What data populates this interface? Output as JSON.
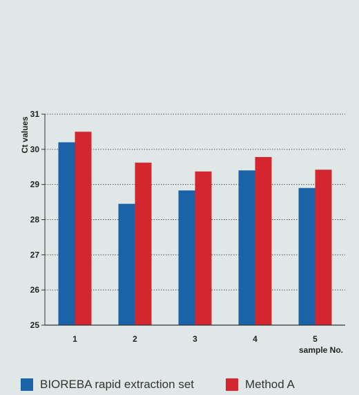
{
  "chart_data": {
    "type": "bar",
    "categories": [
      "1",
      "2",
      "3",
      "4",
      "5"
    ],
    "series": [
      {
        "name": "BIOREBA rapid extraction set",
        "values": [
          30.2,
          28.45,
          28.83,
          29.4,
          28.9
        ],
        "color": "#1b63a9"
      },
      {
        "name": "Method A",
        "values": [
          30.5,
          29.62,
          29.37,
          29.78,
          29.42
        ],
        "color": "#d3262f"
      }
    ],
    "title": "",
    "xlabel": "sample No.",
    "ylabel": "Ct values",
    "ylim": [
      25,
      31
    ],
    "yticks": [
      25,
      26,
      27,
      28,
      29,
      30,
      31
    ],
    "grid": true,
    "legend_position": "bottom"
  }
}
